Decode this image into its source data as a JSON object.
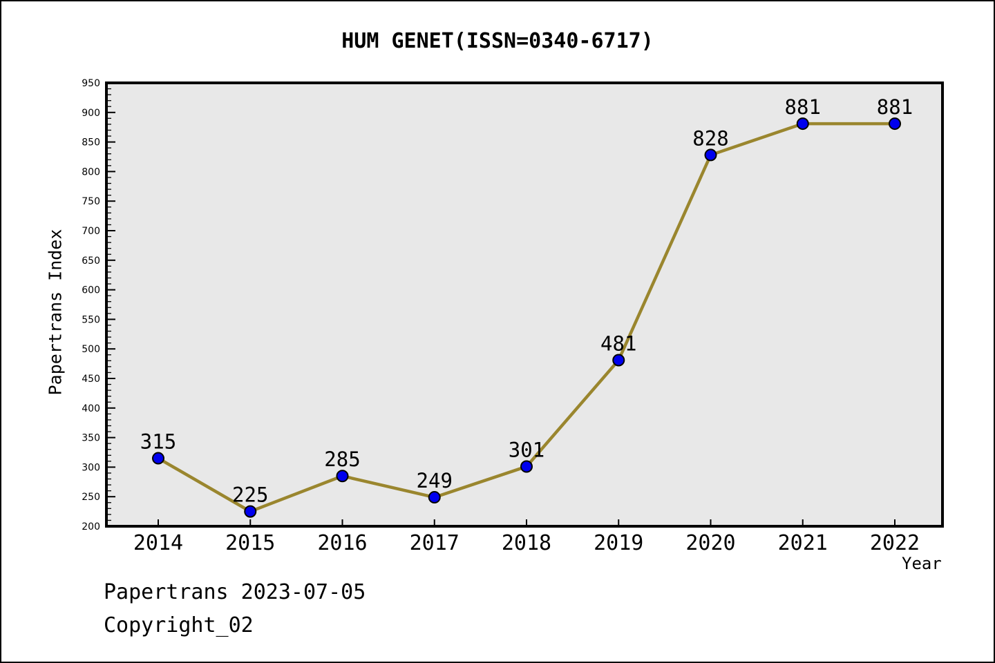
{
  "figure": {
    "footer_line1": "Papertrans 2023-07-05",
    "footer_line2": "Copyright_02"
  },
  "chart_data": {
    "type": "line",
    "title": "HUM GENET(ISSN=0340-6717)",
    "xlabel": "Year",
    "ylabel": "Papertrans Index",
    "x": [
      2014,
      2015,
      2016,
      2017,
      2018,
      2019,
      2020,
      2021,
      2022
    ],
    "series": [
      {
        "name": "Papertrans Index",
        "values": [
          315,
          225,
          285,
          249,
          301,
          481,
          828,
          881,
          881
        ]
      }
    ],
    "data_labels": [
      315,
      225,
      285,
      249,
      301,
      481,
      828,
      881,
      881
    ],
    "ylim": [
      200,
      950
    ],
    "ytick_major": 50,
    "ytick_minor": 10,
    "grid": false,
    "legend_position": "none",
    "colors": {
      "line": "#9A862E",
      "marker_fill": "#0000EE",
      "marker_edge": "#000000",
      "plot_bg": "#E8E8E8",
      "axis_frame": "#000000",
      "text": "#000000",
      "figure_bg": "#FFFFFF"
    }
  }
}
